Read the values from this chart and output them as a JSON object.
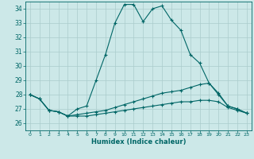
{
  "xlabel": "Humidex (Indice chaleur)",
  "bg_color": "#cce8e8",
  "grid_color": "#aacccc",
  "line_color": "#006666",
  "xlim": [
    -0.5,
    23.5
  ],
  "ylim": [
    25.5,
    34.5
  ],
  "yticks": [
    26,
    27,
    28,
    29,
    30,
    31,
    32,
    33,
    34
  ],
  "xticks": [
    0,
    1,
    2,
    3,
    4,
    5,
    6,
    7,
    8,
    9,
    10,
    11,
    12,
    13,
    14,
    15,
    16,
    17,
    18,
    19,
    20,
    21,
    22,
    23
  ],
  "xtick_labels": [
    "0",
    "1",
    "2",
    "3",
    "4",
    "5",
    "6",
    "7",
    "8",
    "9",
    "10",
    "11",
    "12",
    "13",
    "14",
    "15",
    "16",
    "17",
    "18",
    "19",
    "20",
    "21",
    "22",
    "23"
  ],
  "series": [
    {
      "x": [
        0,
        1,
        2,
        3,
        4,
        5,
        6,
        7,
        8,
        9,
        10,
        11,
        12,
        13,
        14,
        15,
        16,
        17,
        18,
        19,
        20,
        21,
        22,
        23
      ],
      "y": [
        28.0,
        27.7,
        26.9,
        26.8,
        26.5,
        27.0,
        27.2,
        29.0,
        30.8,
        33.0,
        34.3,
        34.3,
        33.1,
        34.0,
        34.2,
        33.2,
        32.5,
        30.8,
        30.2,
        28.8,
        28.0,
        27.2,
        27.0,
        26.7
      ]
    },
    {
      "x": [
        0,
        1,
        2,
        3,
        4,
        5,
        6,
        7,
        8,
        9,
        10,
        11,
        12,
        13,
        14,
        15,
        16,
        17,
        18,
        19,
        20,
        21,
        22,
        23
      ],
      "y": [
        28.0,
        27.7,
        26.9,
        26.8,
        26.5,
        26.6,
        26.7,
        26.8,
        26.9,
        27.1,
        27.3,
        27.5,
        27.7,
        27.9,
        28.1,
        28.2,
        28.3,
        28.5,
        28.7,
        28.8,
        28.1,
        27.2,
        27.0,
        26.7
      ]
    },
    {
      "x": [
        0,
        1,
        2,
        3,
        4,
        5,
        6,
        7,
        8,
        9,
        10,
        11,
        12,
        13,
        14,
        15,
        16,
        17,
        18,
        19,
        20,
        21,
        22,
        23
      ],
      "y": [
        28.0,
        27.7,
        26.9,
        26.8,
        26.5,
        26.5,
        26.5,
        26.6,
        26.7,
        26.8,
        26.9,
        27.0,
        27.1,
        27.2,
        27.3,
        27.4,
        27.5,
        27.5,
        27.6,
        27.6,
        27.5,
        27.1,
        26.9,
        26.7
      ]
    }
  ]
}
